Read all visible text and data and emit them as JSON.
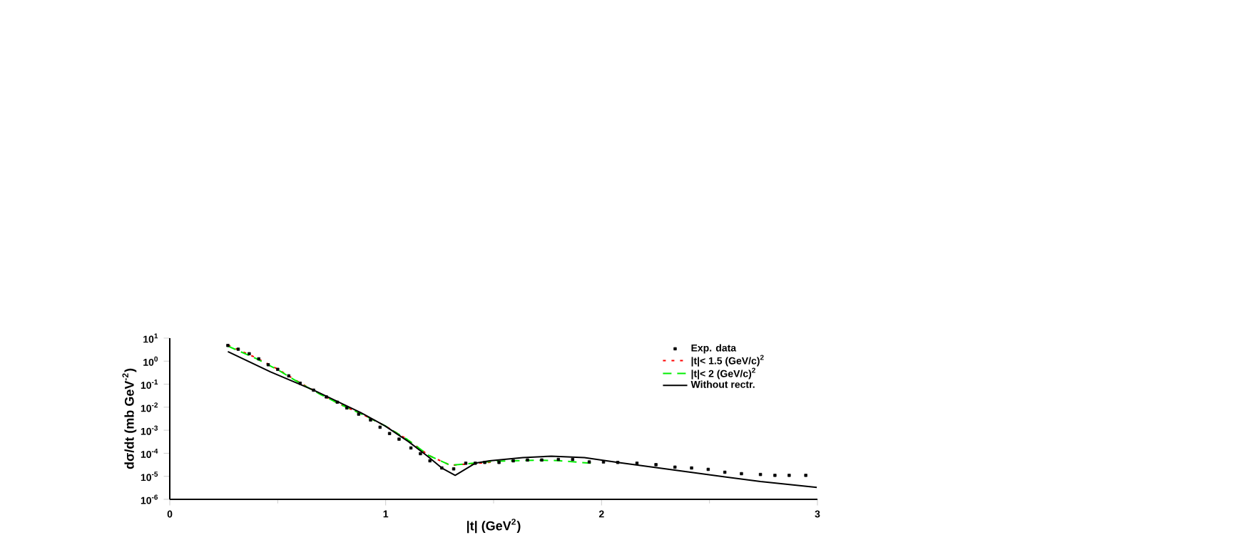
{
  "chart_data": {
    "type": "line",
    "xlabel": "|t| (GeV$^{2}$)",
    "ylabel": "dσ/dt (mb GeV$^{-2}$)",
    "xlim": [
      0,
      3
    ],
    "xticks": [
      0,
      1,
      2,
      3
    ],
    "ylim": [
      1e-06,
      10
    ],
    "log": "y",
    "yticks": [
      {
        "value": 10,
        "label": "10$^{1}$"
      },
      {
        "value": 1,
        "label": "10$^{0}$"
      },
      {
        "value": 0.1,
        "label": "10$^{-1}$"
      },
      {
        "value": 0.01,
        "label": "10$^{-2}$"
      },
      {
        "value": 0.001,
        "label": "10$^{-3}$"
      },
      {
        "value": 0.0001,
        "label": "10$^{-4}$"
      },
      {
        "value": 1e-05,
        "label": "10$^{-5}$"
      },
      {
        "value": 1e-06,
        "label": "10$^{-6}$"
      }
    ],
    "legend": "top right",
    "series": [
      {
        "name": "Exp. data",
        "type": "scatter",
        "marker": "square",
        "color": "#000000",
        "x": [
          0.269,
          0.317,
          0.368,
          0.412,
          0.456,
          0.5,
          0.551,
          0.604,
          0.666,
          0.725,
          0.776,
          0.82,
          0.875,
          0.93,
          0.974,
          1.018,
          1.062,
          1.117,
          1.161,
          1.205,
          1.26,
          1.315,
          1.371,
          1.415,
          1.459,
          1.525,
          1.591,
          1.657,
          1.723,
          1.8,
          1.866,
          1.943,
          2.009,
          2.075,
          2.164,
          2.252,
          2.34,
          2.417,
          2.494,
          2.571,
          2.648,
          2.736,
          2.803,
          2.869,
          2.946
        ],
        "values": [
          4.8,
          3.3,
          2.1,
          1.26,
          0.7,
          0.44,
          0.23,
          0.11,
          0.055,
          0.028,
          0.0165,
          0.0093,
          0.005,
          0.0028,
          0.00135,
          0.00072,
          0.00041,
          0.00017,
          9.6e-05,
          4.7e-05,
          2.3e-05,
          2.1e-05,
          3.7e-05,
          3.7e-05,
          4e-05,
          4e-05,
          4.7e-05,
          5.1e-05,
          5.1e-05,
          5.4e-05,
          5.4e-05,
          4.2e-05,
          4.2e-05,
          4e-05,
          3.7e-05,
          3.2e-05,
          2.5e-05,
          2.3e-05,
          2e-05,
          1.5e-05,
          1.3e-05,
          1.2e-05,
          1.1e-05,
          1.1e-05,
          1.1e-05
        ]
      },
      {
        "name": "|t|< 1.5 (GeV/c)$^{2}$",
        "line_style": "dotted",
        "color": "#ff0000",
        "x": [
          0.269,
          0.4,
          0.5,
          0.6,
          0.7,
          0.8,
          0.9,
          1.0,
          1.1,
          1.2,
          1.3,
          1.4,
          1.5
        ],
        "values": [
          5.0,
          1.4,
          0.45,
          0.12,
          0.036,
          0.012,
          0.0045,
          0.0015,
          0.0004,
          8e-05,
          3e-05,
          3.5e-05,
          4.2e-05
        ]
      },
      {
        "name": "|t|< 2 (GeV/c)$^{2}$",
        "line_style": "dashed",
        "color": "#00ee00",
        "x": [
          0.269,
          0.4,
          0.5,
          0.6,
          0.7,
          0.8,
          0.9,
          1.0,
          1.1,
          1.2,
          1.3,
          1.5,
          1.7,
          1.8,
          1.95
        ],
        "values": [
          4.5,
          1.3,
          0.42,
          0.115,
          0.035,
          0.012,
          0.0045,
          0.0015,
          0.0004,
          8e-05,
          3e-05,
          4.5e-05,
          5e-05,
          4.8e-05,
          3.7e-05
        ]
      },
      {
        "name": "Without rectr.",
        "line_style": "solid",
        "color": "#000000",
        "x": [
          0.269,
          0.467,
          0.666,
          0.886,
          0.996,
          1.106,
          1.194,
          1.26,
          1.322,
          1.415,
          1.481,
          1.635,
          1.767,
          1.921,
          2.075,
          2.296,
          2.516,
          2.736,
          2.997
        ],
        "values": [
          2.6,
          0.34,
          0.055,
          0.0057,
          0.00156,
          0.00032,
          7.5e-05,
          2.3e-05,
          1.1e-05,
          3.7e-05,
          4.7e-05,
          6.5e-05,
          7.5e-05,
          6.5e-05,
          4e-05,
          2.1e-05,
          1.1e-05,
          5.9e-06,
          3.3e-06
        ]
      }
    ]
  }
}
